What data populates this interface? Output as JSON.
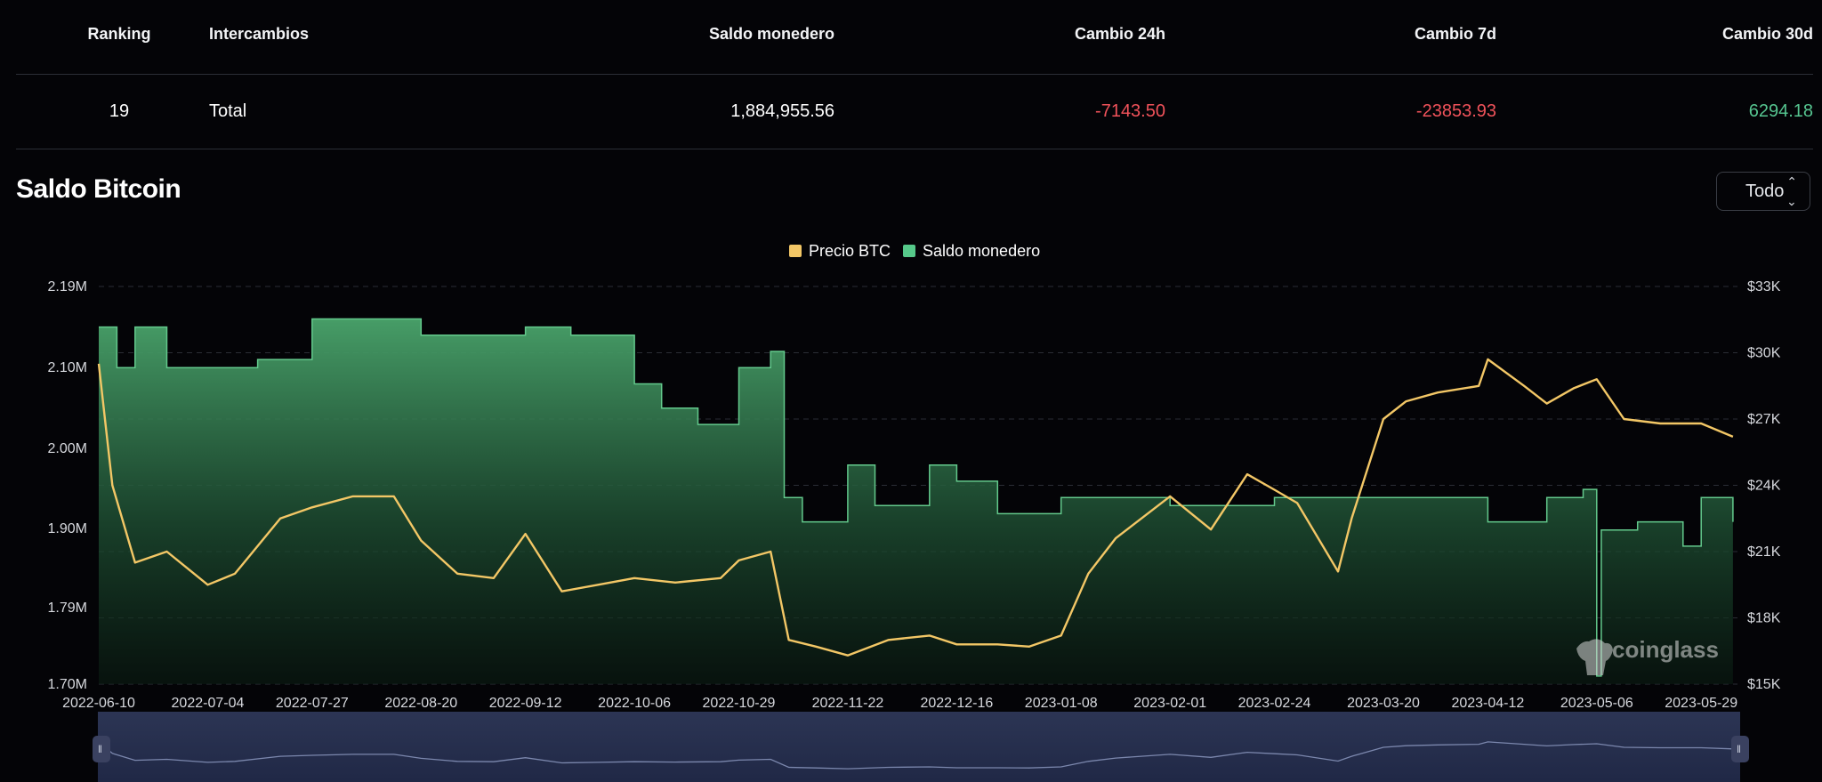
{
  "table": {
    "headers": {
      "ranking": "Ranking",
      "exchanges": "Intercambios",
      "wallet_balance": "Saldo monedero",
      "change_24h": "Cambio 24h",
      "change_7d": "Cambio 7d",
      "change_30d": "Cambio 30d"
    },
    "rows": [
      {
        "ranking": "19",
        "exchange": "Total",
        "wallet_balance": "1,884,955.56",
        "change_24h": "-7143.50",
        "change_7d": "-23853.93",
        "change_30d": "6294.18"
      }
    ]
  },
  "section": {
    "title": "Saldo Bitcoin",
    "range_value": "Todo"
  },
  "watermark": "coinglass",
  "colors": {
    "price": "#f3c766",
    "balance": "#56c98a",
    "negative": "#f0525a",
    "positive": "#56c590",
    "background": "#040407"
  },
  "chart_data": {
    "type": "area",
    "legend": [
      "Precio BTC",
      "Saldo monedero"
    ],
    "x_tick_labels": [
      "2022-06-10",
      "2022-07-04",
      "2022-07-27",
      "2022-08-20",
      "2022-09-12",
      "2022-10-06",
      "2022-10-29",
      "2022-11-22",
      "2022-12-16",
      "2023-01-08",
      "2023-02-01",
      "2023-02-24",
      "2023-03-20",
      "2023-04-12",
      "2023-05-06",
      "2023-05-29"
    ],
    "y_left": {
      "ticks": [
        "1.70M",
        "1.79M",
        "1.90M",
        "2.00M",
        "2.10M",
        "2.19M"
      ],
      "range": [
        1.7,
        2.19
      ],
      "unit": "M"
    },
    "y_right": {
      "ticks": [
        "$15K",
        "$18K",
        "$21K",
        "$24K",
        "$27K",
        "$30K",
        "$33K"
      ],
      "range": [
        15000,
        33000
      ]
    },
    "grid": "horizontal dashed",
    "legend_position": "top-center",
    "series": [
      {
        "name": "Saldo monedero",
        "axis": "left",
        "x": [
          "2022-06-10",
          "2022-06-14",
          "2022-06-18",
          "2022-06-25",
          "2022-07-04",
          "2022-07-15",
          "2022-07-27",
          "2022-08-05",
          "2022-08-20",
          "2022-09-01",
          "2022-09-12",
          "2022-09-22",
          "2022-10-06",
          "2022-10-12",
          "2022-10-20",
          "2022-10-29",
          "2022-11-05",
          "2022-11-08",
          "2022-11-12",
          "2022-11-22",
          "2022-11-28",
          "2022-12-10",
          "2022-12-16",
          "2022-12-25",
          "2023-01-08",
          "2023-01-20",
          "2023-02-01",
          "2023-02-15",
          "2023-02-24",
          "2023-03-05",
          "2023-03-20",
          "2023-04-01",
          "2023-04-12",
          "2023-04-25",
          "2023-05-03",
          "2023-05-06",
          "2023-05-07",
          "2023-05-15",
          "2023-05-25",
          "2023-05-29",
          "2023-06-05"
        ],
        "values": [
          2.14,
          2.09,
          2.14,
          2.09,
          2.09,
          2.1,
          2.15,
          2.15,
          2.13,
          2.13,
          2.14,
          2.13,
          2.07,
          2.04,
          2.02,
          2.09,
          2.11,
          1.93,
          1.9,
          1.97,
          1.92,
          1.97,
          1.95,
          1.91,
          1.93,
          1.93,
          1.92,
          1.92,
          1.93,
          1.93,
          1.93,
          1.93,
          1.9,
          1.93,
          1.94,
          1.71,
          1.89,
          1.9,
          1.87,
          1.93,
          1.9
        ]
      },
      {
        "name": "Precio BTC",
        "axis": "right",
        "x": [
          "2022-06-10",
          "2022-06-13",
          "2022-06-18",
          "2022-06-25",
          "2022-07-04",
          "2022-07-10",
          "2022-07-20",
          "2022-07-27",
          "2022-08-05",
          "2022-08-14",
          "2022-08-20",
          "2022-08-28",
          "2022-09-05",
          "2022-09-12",
          "2022-09-20",
          "2022-09-28",
          "2022-10-06",
          "2022-10-15",
          "2022-10-25",
          "2022-10-29",
          "2022-11-05",
          "2022-11-09",
          "2022-11-15",
          "2022-11-22",
          "2022-12-01",
          "2022-12-10",
          "2022-12-16",
          "2022-12-25",
          "2023-01-01",
          "2023-01-08",
          "2023-01-14",
          "2023-01-20",
          "2023-02-01",
          "2023-02-10",
          "2023-02-18",
          "2023-02-24",
          "2023-03-01",
          "2023-03-10",
          "2023-03-13",
          "2023-03-20",
          "2023-03-25",
          "2023-04-01",
          "2023-04-10",
          "2023-04-12",
          "2023-04-20",
          "2023-04-25",
          "2023-05-01",
          "2023-05-06",
          "2023-05-12",
          "2023-05-20",
          "2023-05-29",
          "2023-06-05"
        ],
        "values": [
          29500,
          24000,
          20500,
          21000,
          19500,
          20000,
          22500,
          23000,
          23500,
          23500,
          21500,
          20000,
          19800,
          21800,
          19200,
          19500,
          19800,
          19600,
          19800,
          20600,
          21000,
          17000,
          16700,
          16300,
          17000,
          17200,
          16800,
          16800,
          16700,
          17200,
          20000,
          21600,
          23500,
          22000,
          24500,
          23800,
          23200,
          20100,
          22500,
          27000,
          27800,
          28200,
          28500,
          29700,
          28500,
          27700,
          28400,
          28800,
          27000,
          26800,
          26800,
          26200
        ]
      }
    ]
  }
}
